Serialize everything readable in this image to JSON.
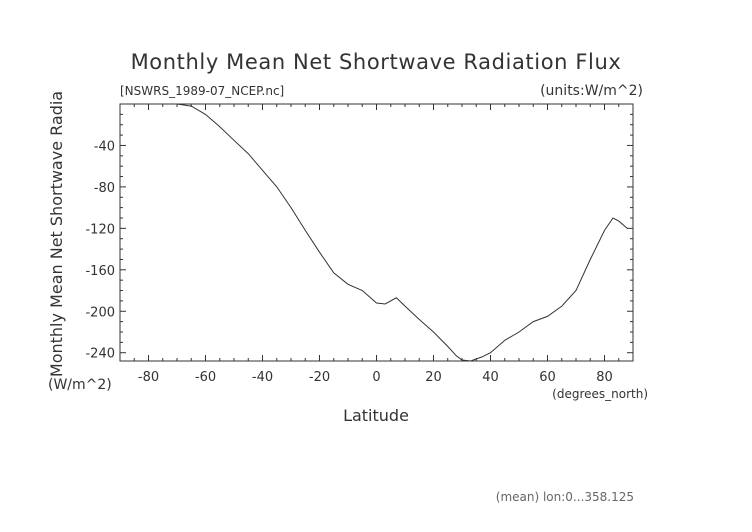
{
  "chart_data": {
    "type": "line",
    "title": "Monthly Mean Net Shortwave Radiation Flux",
    "subtitle_left": "[NSWRS_1989-07_NCEP.nc]",
    "subtitle_right": "(units:W/m^2)",
    "xlabel": "Latitude",
    "xunit": "(degrees_north)",
    "ylabel": "Monthly Mean Net Shortwave Radia",
    "yunit": "(W/m^2)",
    "footer": "(mean) lon:0...358.125",
    "xlim": [
      -90,
      90
    ],
    "ylim": [
      -248,
      0
    ],
    "x_ticks": [
      -80,
      -60,
      -40,
      -20,
      0,
      20,
      40,
      60,
      80
    ],
    "y_ticks": [
      -40,
      -80,
      -120,
      -160,
      -200,
      -240
    ],
    "grid": false,
    "series": [
      {
        "x": [
          -75,
          -70,
          -65,
          -60,
          -55,
          -50,
          -45,
          -40,
          -35,
          -30,
          -25,
          -20,
          -15,
          -10,
          -5,
          0,
          3,
          7,
          10,
          15,
          20,
          25,
          28,
          30,
          33,
          37,
          40,
          45,
          50,
          55,
          60,
          65,
          70,
          75,
          80,
          83,
          85,
          88
        ],
        "y": [
          0,
          0,
          -2,
          -10,
          -22,
          -35,
          -48,
          -64,
          -80,
          -100,
          -122,
          -143,
          -163,
          -174,
          -180,
          -192,
          -193,
          -187,
          -195,
          -208,
          -220,
          -234,
          -243,
          -247,
          -248,
          -244,
          -240,
          -228,
          -220,
          -210,
          -205,
          -195,
          -180,
          -150,
          -122,
          -110,
          -113,
          -120
        ]
      }
    ]
  }
}
